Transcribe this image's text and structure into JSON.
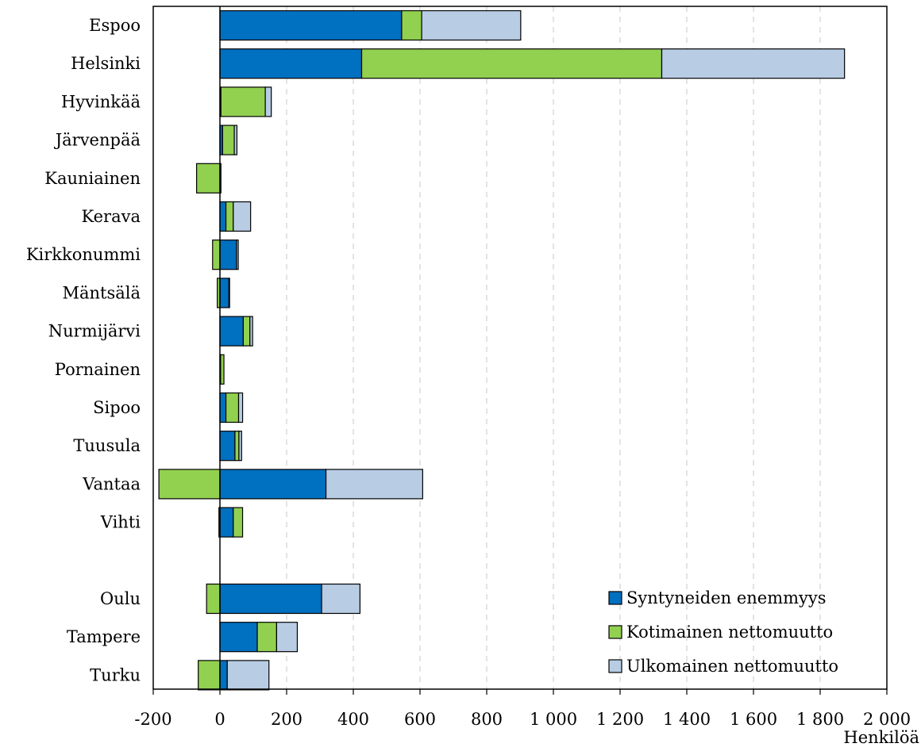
{
  "chart_data": {
    "type": "bar",
    "orientation": "horizontal",
    "stacked": true,
    "xlabel": "Henkilöä",
    "xlim": [
      -200,
      2000
    ],
    "xticks": [
      -200,
      0,
      200,
      400,
      600,
      800,
      1000,
      1200,
      1400,
      1600,
      1800,
      2000
    ],
    "xtick_labels": [
      "-200",
      "0",
      "200",
      "400",
      "600",
      "800",
      "1 000",
      "1 200",
      "1 400",
      "1 600",
      "1 800",
      "2 000"
    ],
    "grid": "vertical dashed",
    "legend_position": "bottom-right",
    "categories": [
      "Espoo",
      "Helsinki",
      "Hyvinkää",
      "Järvenpää",
      "Kauniainen",
      "Kerava",
      "Kirkkonummi",
      "Mäntsälä",
      "Nurmijärvi",
      "Pornainen",
      "Sipoo",
      "Tuusula",
      "Vantaa",
      "Vihti",
      "",
      "Oulu",
      "Tampere",
      "Turku"
    ],
    "series": [
      {
        "name": "Syntyneiden enemmyys",
        "color": "#0070C0",
        "values": [
          545,
          425,
          3,
          8,
          3,
          18,
          50,
          27,
          70,
          2,
          18,
          45,
          318,
          40,
          null,
          305,
          112,
          22
        ]
      },
      {
        "name": "Kotimainen nettomuutto",
        "color": "#92D050",
        "values": [
          60,
          900,
          133,
          35,
          -70,
          22,
          -22,
          -8,
          20,
          10,
          38,
          12,
          -183,
          28,
          null,
          -40,
          58,
          -65
        ]
      },
      {
        "name": "Ulkomainen nettomuutto",
        "color": "#B8CCE4",
        "values": [
          297,
          548,
          18,
          8,
          0,
          52,
          5,
          2,
          8,
          0,
          12,
          8,
          290,
          -3,
          null,
          115,
          62,
          125
        ]
      }
    ]
  }
}
